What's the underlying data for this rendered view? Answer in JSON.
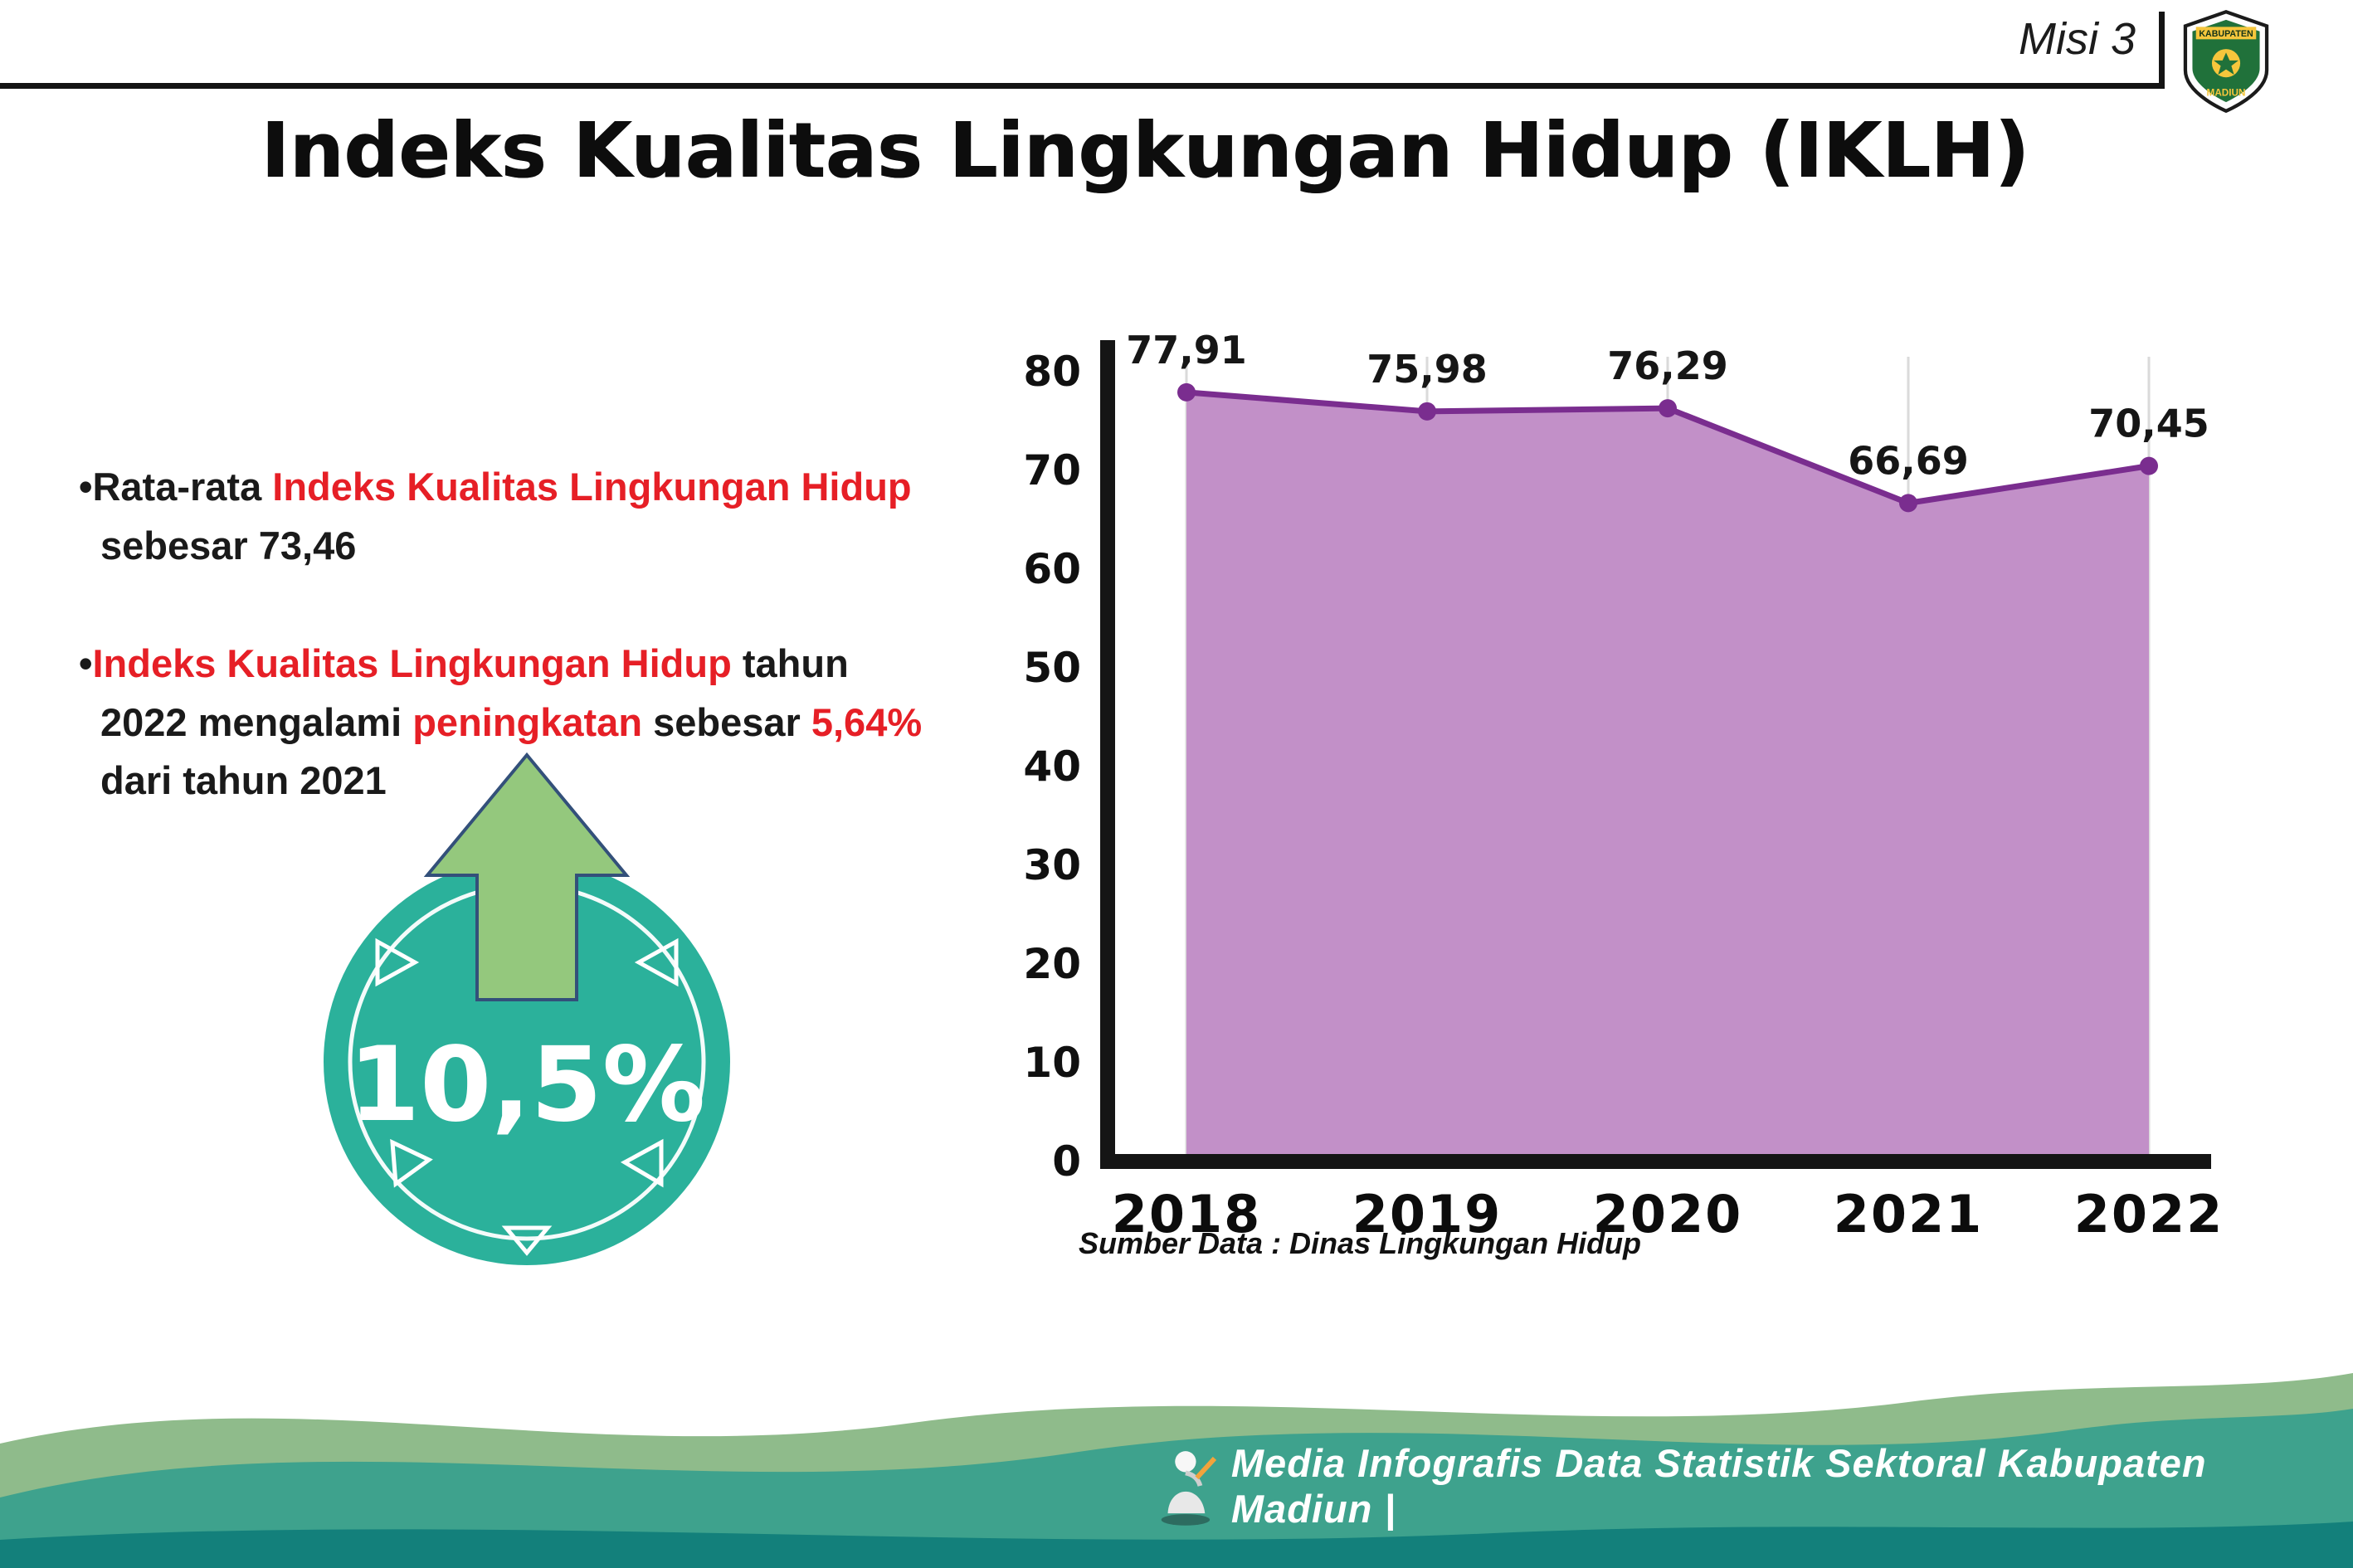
{
  "header": {
    "misi_label": "Misi 3",
    "logo": {
      "top_text": "KABUPATEN",
      "bottom_text": "MADIUN"
    }
  },
  "title": "Indeks Kualitas Lingkungan Hidup (IKLH)",
  "bullets": {
    "marker": "•",
    "b1": [
      {
        "t": "Rata-rata ",
        "c": "k"
      },
      {
        "t": "Indeks Kualitas Lingkungan Hidup",
        "c": "r"
      },
      {
        "t": " sebesar 73,46",
        "c": "k"
      }
    ],
    "b2": [
      {
        "t": "Indeks Kualitas Lingkungan Hidup",
        "c": "r"
      },
      {
        "t": " tahun 2022 mengalami ",
        "c": "k"
      },
      {
        "t": "peningkatan",
        "c": "r"
      },
      {
        "t": " sebesar ",
        "c": "k"
      },
      {
        "t": "5,64%",
        "c": "r"
      },
      {
        "t": " dari tahun 2021",
        "c": "k"
      }
    ]
  },
  "badge": {
    "value": "10,5%"
  },
  "chart_data": {
    "type": "area",
    "title": "Indeks Kualitas Lingkungan Hidup (IKLH)",
    "categories": [
      "2018",
      "2019",
      "2020",
      "2021",
      "2022"
    ],
    "values": [
      77.91,
      75.98,
      76.29,
      66.69,
      70.45
    ],
    "point_labels": [
      "77,91",
      "75,98",
      "76,29",
      "66,69",
      "70,45"
    ],
    "ylim": [
      0,
      80
    ],
    "yticks": [
      0,
      10,
      20,
      30,
      40,
      50,
      60,
      70,
      80
    ],
    "grid": "vertical-light",
    "legend": "none",
    "line_color": "#7a2d8f",
    "fill_color": "#c290c8",
    "source": "Sumber Data : Dinas Lingkungan Hidup"
  },
  "footer": {
    "text": "Media Infografis Data Statistik Sektoral Kabupaten Madiun |"
  },
  "colors": {
    "red": "#e61f26",
    "teal": "#2bb19b",
    "arrow_green": "#94c87d",
    "purple_line": "#7a2d8f",
    "purple_fill": "#c290c8"
  }
}
